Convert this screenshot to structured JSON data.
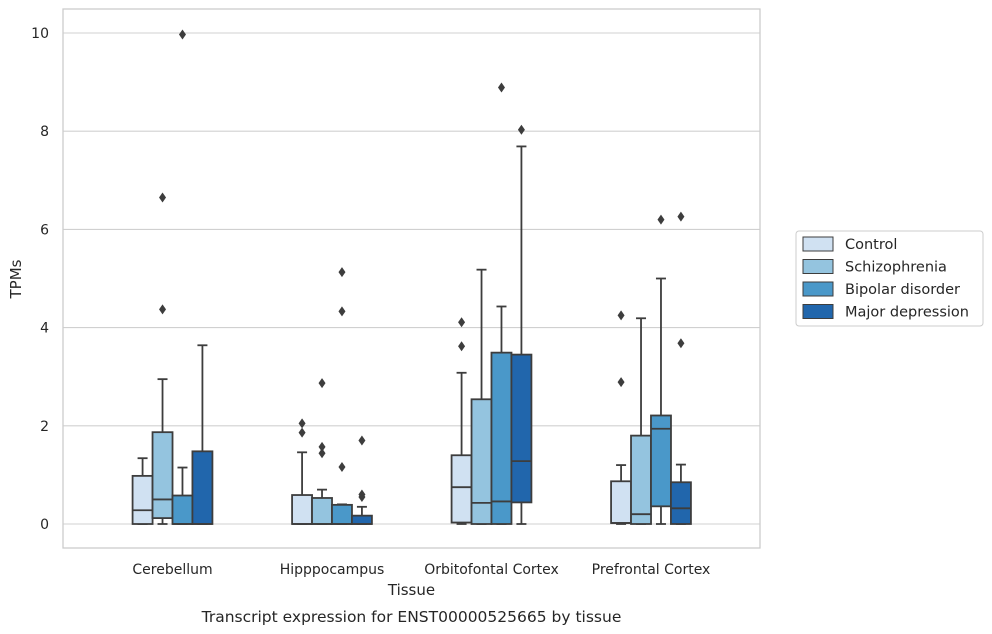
{
  "chart_data": {
    "type": "box",
    "title": "",
    "caption": "Transcript expression for ENST00000525665 by tissue",
    "xlabel": "Tissue",
    "ylabel": "TPMs",
    "ylim": [
      -0.47,
      10.5
    ],
    "yticks": [
      0,
      2,
      4,
      6,
      8,
      10
    ],
    "grid": "horizontal",
    "legend_position": "right",
    "categories": [
      "Cerebellum",
      "Hipppocampus",
      "Orbitofontal Cortex",
      "Prefrontal Cortex"
    ],
    "series": [
      {
        "name": "Control",
        "color": "#d0e1f2",
        "boxes": [
          {
            "whisker_low": 0,
            "q1": 0,
            "median": 0.28,
            "q3": 0.98,
            "whisker_high": 1.34,
            "outliers": []
          },
          {
            "whisker_low": 0,
            "q1": 0,
            "median": 0,
            "q3": 0.59,
            "whisker_high": 1.46,
            "outliers": [
              1.86,
              2.05
            ]
          },
          {
            "whisker_low": 0,
            "q1": 0.03,
            "median": 0.75,
            "q3": 1.4,
            "whisker_high": 3.08,
            "outliers": [
              3.62,
              4.11
            ]
          },
          {
            "whisker_low": 0,
            "q1": 0.02,
            "median": 0.02,
            "q3": 0.87,
            "whisker_high": 1.2,
            "outliers": [
              2.89,
              4.25
            ]
          }
        ]
      },
      {
        "name": "Schizophrenia",
        "color": "#94c4df",
        "boxes": [
          {
            "whisker_low": 0,
            "q1": 0.12,
            "median": 0.5,
            "q3": 1.87,
            "whisker_high": 2.95,
            "outliers": [
              4.37,
              6.65
            ]
          },
          {
            "whisker_low": 0,
            "q1": 0,
            "median": 0,
            "q3": 0.53,
            "whisker_high": 0.7,
            "outliers": [
              1.44,
              1.57,
              2.87
            ]
          },
          {
            "whisker_low": 0,
            "q1": 0,
            "median": 0.43,
            "q3": 2.54,
            "whisker_high": 5.18,
            "outliers": []
          },
          {
            "whisker_low": 0,
            "q1": 0,
            "median": 0.2,
            "q3": 1.8,
            "whisker_high": 4.19,
            "outliers": []
          }
        ]
      },
      {
        "name": "Bipolar disorder",
        "color": "#4a98c9",
        "boxes": [
          {
            "whisker_low": 0,
            "q1": 0,
            "median": 0,
            "q3": 0.58,
            "whisker_high": 1.15,
            "outliers": [
              9.97
            ]
          },
          {
            "whisker_low": 0,
            "q1": 0,
            "median": 0,
            "q3": 0.39,
            "whisker_high": 0.4,
            "outliers": [
              1.16,
              4.33,
              5.13
            ]
          },
          {
            "whisker_low": 0,
            "q1": 0,
            "median": 0.46,
            "q3": 3.49,
            "whisker_high": 4.43,
            "outliers": [
              8.89
            ]
          },
          {
            "whisker_low": 0,
            "q1": 0.36,
            "median": 1.94,
            "q3": 2.21,
            "whisker_high": 5.0,
            "outliers": [
              6.2
            ]
          }
        ]
      },
      {
        "name": "Major depression",
        "color": "#2166ac",
        "boxes": [
          {
            "whisker_low": 0,
            "q1": 0,
            "median": 0,
            "q3": 1.48,
            "whisker_high": 3.64,
            "outliers": []
          },
          {
            "whisker_low": 0,
            "q1": 0,
            "median": 0,
            "q3": 0.17,
            "whisker_high": 0.35,
            "outliers": [
              0.55,
              0.6,
              1.7
            ]
          },
          {
            "whisker_low": 0,
            "q1": 0.44,
            "median": 1.28,
            "q3": 3.45,
            "whisker_high": 7.69,
            "outliers": [
              8.03
            ]
          },
          {
            "whisker_low": 0,
            "q1": 0,
            "median": 0.32,
            "q3": 0.85,
            "whisker_high": 1.21,
            "outliers": [
              3.68,
              6.26
            ]
          }
        ]
      }
    ]
  }
}
